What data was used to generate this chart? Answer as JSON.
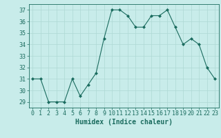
{
  "x": [
    0,
    1,
    2,
    3,
    4,
    5,
    6,
    7,
    8,
    9,
    10,
    11,
    12,
    13,
    14,
    15,
    16,
    17,
    18,
    19,
    20,
    21,
    22,
    23
  ],
  "y": [
    31,
    31,
    29,
    29,
    29,
    31,
    29.5,
    30.5,
    31.5,
    34.5,
    37,
    37,
    36.5,
    35.5,
    35.5,
    36.5,
    36.5,
    37,
    35.5,
    34,
    34.5,
    34,
    32,
    31
  ],
  "line_color": "#1a6b5e",
  "marker": "D",
  "marker_size": 2,
  "bg_color": "#c8ecea",
  "grid_color": "#aed8d4",
  "xlabel": "Humidex (Indice chaleur)",
  "xlim": [
    -0.5,
    23.5
  ],
  "ylim": [
    28.5,
    37.5
  ],
  "yticks": [
    29,
    30,
    31,
    32,
    33,
    34,
    35,
    36,
    37
  ],
  "xticks": [
    0,
    1,
    2,
    3,
    4,
    5,
    6,
    7,
    8,
    9,
    10,
    11,
    12,
    13,
    14,
    15,
    16,
    17,
    18,
    19,
    20,
    21,
    22,
    23
  ],
  "tick_color": "#1a6b5e",
  "label_color": "#1a6b5e",
  "tick_fontsize": 6,
  "xlabel_fontsize": 7
}
